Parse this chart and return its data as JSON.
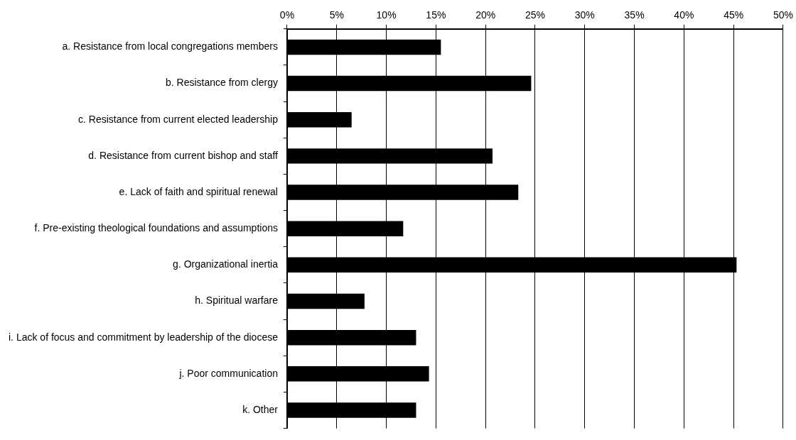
{
  "chart_data": {
    "type": "bar",
    "orientation": "horizontal",
    "categories": [
      "a. Resistance from local congregations members",
      "b. Resistance from clergy",
      "c. Resistance from current elected leadership",
      "d. Resistance from current bishop and staff",
      "e. Lack of faith and spiritual renewal",
      "f. Pre-existing theological foundations and assumptions",
      "g. Organizational inertia",
      "h. Spiritual warfare",
      "i. Lack of focus and commitment by leadership of the diocese",
      "j. Poor communication",
      "k. Other"
    ],
    "values": [
      15.5,
      24.6,
      6.5,
      20.7,
      23.3,
      11.7,
      45.3,
      7.8,
      13.0,
      14.3,
      13.0
    ],
    "color": "#000000",
    "xlim": [
      0,
      50
    ],
    "xticks": [
      {
        "value": 0,
        "label": "0%"
      },
      {
        "value": 5,
        "label": "5%"
      },
      {
        "value": 10,
        "label": "10%"
      },
      {
        "value": 15,
        "label": "15%"
      },
      {
        "value": 20,
        "label": "20%"
      },
      {
        "value": 25,
        "label": "25%"
      },
      {
        "value": 30,
        "label": "30%"
      },
      {
        "value": 35,
        "label": "35%"
      },
      {
        "value": 40,
        "label": "40%"
      },
      {
        "value": 45,
        "label": "45%"
      },
      {
        "value": 50,
        "label": "50%"
      }
    ],
    "grid": "x",
    "legend": false
  }
}
